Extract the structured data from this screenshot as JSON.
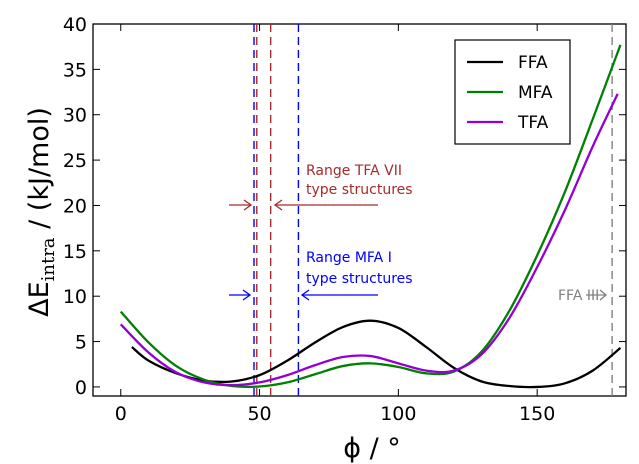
{
  "chart_data": {
    "type": "line",
    "xlabel": "ϕ / °",
    "ylabel_main": "ΔE",
    "ylabel_sub": "intra",
    "ylabel_rest": " / (kJ/mol)",
    "xlim": [
      -10,
      182
    ],
    "ylim": [
      -1,
      40
    ],
    "x_ticks": [
      0,
      50,
      100,
      150
    ],
    "y_ticks": [
      0,
      5,
      10,
      15,
      20,
      25,
      30,
      35,
      40
    ],
    "grid": false,
    "legend_position": "top-right",
    "series": [
      {
        "name": "FFA",
        "color": "#000000",
        "x": [
          4,
          10,
          20,
          30,
          40,
          50,
          60,
          70,
          80,
          90,
          100,
          110,
          120,
          130,
          140,
          150,
          160,
          170,
          180
        ],
        "y": [
          4.4,
          2.9,
          1.5,
          0.7,
          0.6,
          1.3,
          2.9,
          4.9,
          6.6,
          7.3,
          6.5,
          4.4,
          2.1,
          0.6,
          0.1,
          0.0,
          0.4,
          1.8,
          4.3
        ]
      },
      {
        "name": "MFA",
        "color": "#008000",
        "x": [
          0,
          10,
          20,
          30,
          40,
          50,
          60,
          70,
          80,
          90,
          100,
          110,
          120,
          130,
          140,
          150,
          160,
          170,
          180
        ],
        "y": [
          8.3,
          4.9,
          2.3,
          0.8,
          0.1,
          0.05,
          0.5,
          1.4,
          2.3,
          2.6,
          2.2,
          1.5,
          1.7,
          3.9,
          8.4,
          14.5,
          21.5,
          29.5,
          37.7
        ]
      },
      {
        "name": "TFA",
        "color": "#9400d3",
        "x": [
          0,
          10,
          20,
          30,
          40,
          50,
          60,
          70,
          80,
          90,
          100,
          110,
          120,
          130,
          140,
          150,
          160,
          170,
          179
        ],
        "y": [
          6.9,
          3.8,
          1.6,
          0.5,
          0.2,
          0.5,
          1.3,
          2.4,
          3.3,
          3.4,
          2.6,
          1.8,
          1.8,
          3.6,
          7.6,
          13.2,
          19.5,
          26.5,
          32.3
        ]
      }
    ],
    "vlines": [
      {
        "x": 48,
        "color": "#0000ff"
      },
      {
        "x": 49,
        "color": "#a52a2a"
      },
      {
        "x": 54,
        "color": "#a52a2a"
      },
      {
        "x": 64,
        "color": "#0000ff"
      },
      {
        "x": 177,
        "color": "#808080"
      }
    ],
    "annotations": {
      "tfa_vii_line1": "Range TFA VII",
      "tfa_vii_line2": "type structures",
      "mfa_i_line1": "Range MFA I",
      "mfa_i_line2": "type structures",
      "ffa_iii": "FFA III"
    },
    "colors": {
      "brown": "#a52a2a",
      "blue": "#0000ff",
      "gray": "#808080"
    }
  }
}
